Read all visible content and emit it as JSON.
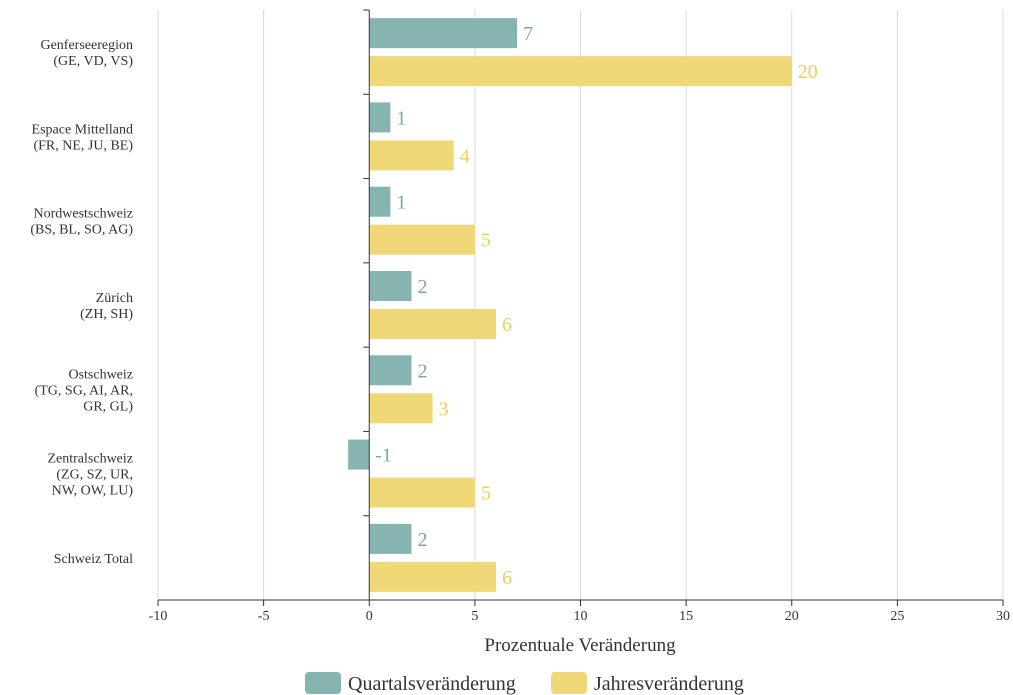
{
  "chart_data": {
    "type": "bar",
    "orientation": "horizontal",
    "categories": [
      [
        "Genferseeregion",
        "(GE, VD, VS)"
      ],
      [
        "Espace Mittelland",
        "(FR, NE, JU, BE)"
      ],
      [
        "Nordwestschweiz",
        "(BS, BL, SO, AG)"
      ],
      [
        "Zürich",
        "(ZH, SH)"
      ],
      [
        "Ostschweiz",
        "(TG, SG, AI, AR,",
        "GR, GL)"
      ],
      [
        "Zentralschweiz",
        "(ZG, SZ, UR,",
        "NW, OW, LU)"
      ],
      [
        "Schweiz Total"
      ]
    ],
    "series": [
      {
        "name": "Quartalsveränderung",
        "color": "#86b4b0",
        "values": [
          7,
          1,
          1,
          2,
          2,
          -1,
          2
        ]
      },
      {
        "name": "Jahresveränderung",
        "color": "#f0d878",
        "values": [
          20,
          4,
          5,
          6,
          3,
          5,
          6
        ]
      }
    ],
    "xlabel": "Prozentuale Veränderung",
    "xlim": [
      -10,
      30
    ],
    "xticks": [
      -10,
      -5,
      0,
      5,
      10,
      15,
      20,
      25,
      30
    ],
    "grid": true,
    "legend_position": "bottom"
  }
}
